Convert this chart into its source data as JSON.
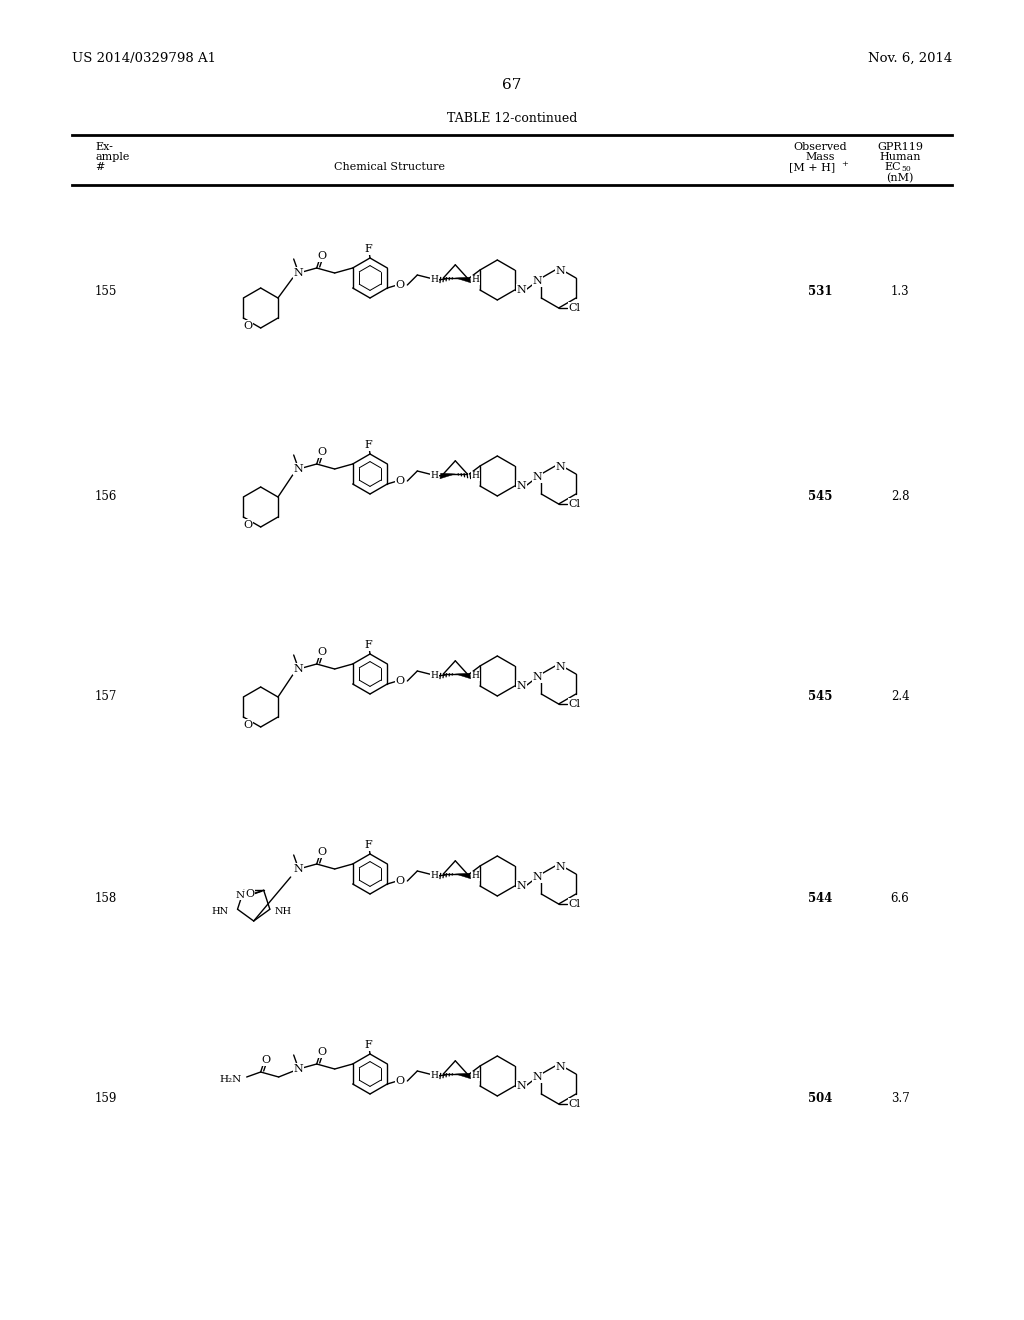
{
  "page_number": "67",
  "patent_number": "US 2014/0329798 A1",
  "patent_date": "Nov. 6, 2014",
  "table_title": "TABLE 12-continued",
  "bg_color": "#ffffff",
  "text_color": "#000000",
  "rows": [
    {
      "example": "155",
      "mass": "531",
      "ec50": "1.3"
    },
    {
      "example": "156",
      "mass": "545",
      "ec50": "2.8"
    },
    {
      "example": "157",
      "mass": "545",
      "ec50": "2.4"
    },
    {
      "example": "158",
      "mass": "544",
      "ec50": "6.6"
    },
    {
      "example": "159",
      "mass": "504",
      "ec50": "3.7"
    }
  ]
}
